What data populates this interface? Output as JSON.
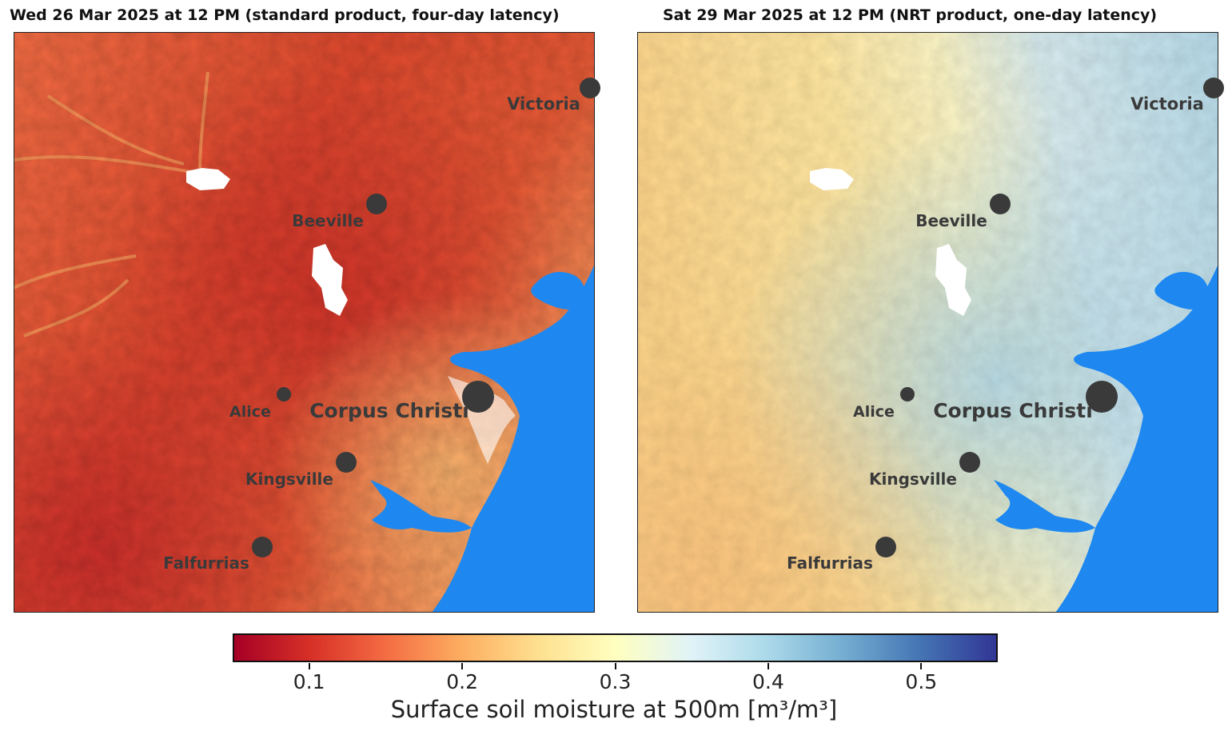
{
  "panels": [
    {
      "title": "Wed 26 Mar 2025 at 12 PM (standard product, four-day latency)",
      "product": "standard",
      "cities": [
        {
          "name": "Victoria",
          "size": "medium"
        },
        {
          "name": "Beeville",
          "size": "medium"
        },
        {
          "name": "Alice",
          "size": "small"
        },
        {
          "name": "Corpus Christi",
          "size": "large"
        },
        {
          "name": "Kingsville",
          "size": "medium"
        },
        {
          "name": "Falfurrias",
          "size": "medium"
        }
      ]
    },
    {
      "title": "Sat 29 Mar 2025 at 12 PM (NRT product, one-day latency)",
      "product": "nrt",
      "cities": [
        {
          "name": "Victoria",
          "size": "medium"
        },
        {
          "name": "Beeville",
          "size": "medium"
        },
        {
          "name": "Alice",
          "size": "small"
        },
        {
          "name": "Corpus Christi",
          "size": "large"
        },
        {
          "name": "Kingsville",
          "size": "medium"
        },
        {
          "name": "Falfurrias",
          "size": "medium"
        }
      ]
    }
  ],
  "colorbar": {
    "label": "Surface soil moisture at 500m [m³/m³]",
    "range": [
      0.05,
      0.55
    ],
    "ticks": [
      "0.1",
      "0.2",
      "0.3",
      "0.4",
      "0.5"
    ],
    "colormap": "RdYlBu",
    "colors": [
      "#a50026",
      "#d73027",
      "#f46d43",
      "#fdae61",
      "#fee090",
      "#ffffbf",
      "#e0f3f8",
      "#abd9e9",
      "#74add1",
      "#4575b4",
      "#313695"
    ]
  },
  "map_colors": {
    "water": "#1e88f0",
    "city_marker": "#3a3a3a",
    "no_data": "#ffffff"
  }
}
